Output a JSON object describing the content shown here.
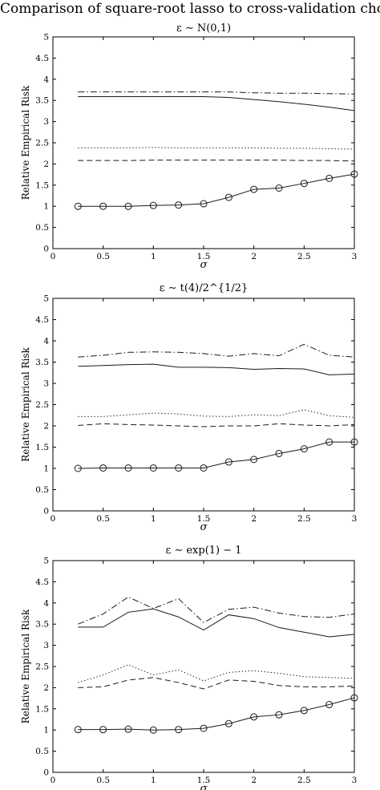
{
  "figure_title": "Comparison of square-root lasso to cross-validation choice",
  "colors": {
    "line": "#1a1a1a",
    "axis": "#000000",
    "background": "#ffffff"
  },
  "chart_data": [
    {
      "type": "line",
      "title": "ε ∼ N(0,1)",
      "xlabel": "σ",
      "ylabel": "Relative Empirical Risk",
      "xlim": [
        0,
        3
      ],
      "ylim": [
        0,
        5
      ],
      "xticks": [
        "0",
        "0.5",
        "1",
        "1.5",
        "2",
        "2.5",
        "3"
      ],
      "yticks": [
        "0",
        "0.5",
        "1",
        "1.5",
        "2",
        "2.5",
        "3",
        "3.5",
        "4",
        "4.5",
        "5"
      ],
      "x": [
        0.25,
        0.5,
        0.75,
        1,
        1.25,
        1.5,
        1.75,
        2,
        2.25,
        2.5,
        2.75,
        3
      ],
      "series": [
        {
          "style": "dashdot",
          "marker": "none",
          "values": [
            3.7,
            3.7,
            3.7,
            3.7,
            3.7,
            3.7,
            3.7,
            3.68,
            3.67,
            3.67,
            3.66,
            3.65
          ]
        },
        {
          "style": "solid",
          "marker": "none",
          "values": [
            3.59,
            3.59,
            3.59,
            3.59,
            3.59,
            3.59,
            3.57,
            3.52,
            3.47,
            3.41,
            3.34,
            3.26
          ]
        },
        {
          "style": "dotted",
          "marker": "none",
          "values": [
            2.38,
            2.38,
            2.38,
            2.39,
            2.38,
            2.38,
            2.38,
            2.38,
            2.37,
            2.37,
            2.36,
            2.35
          ]
        },
        {
          "style": "dashed",
          "marker": "none",
          "values": [
            2.08,
            2.08,
            2.08,
            2.09,
            2.09,
            2.09,
            2.09,
            2.09,
            2.09,
            2.08,
            2.08,
            2.07
          ]
        },
        {
          "style": "solid",
          "marker": "circle",
          "values": [
            1.0,
            1.0,
            1.0,
            1.02,
            1.03,
            1.06,
            1.21,
            1.4,
            1.43,
            1.54,
            1.66,
            1.76
          ]
        }
      ]
    },
    {
      "type": "line",
      "title": "ε ∼ t(4)/2^{1/2}",
      "xlabel": "σ",
      "ylabel": "Relative Empirical Risk",
      "xlim": [
        0,
        3
      ],
      "ylim": [
        0,
        5
      ],
      "xticks": [
        "0",
        "0.5",
        "1",
        "1.5",
        "2",
        "2.5",
        "3"
      ],
      "yticks": [
        "0",
        "0.5",
        "1",
        "1.5",
        "2",
        "2.5",
        "3",
        "3.5",
        "4",
        "4.5",
        "5"
      ],
      "x": [
        0.25,
        0.5,
        0.75,
        1,
        1.25,
        1.5,
        1.75,
        2,
        2.25,
        2.5,
        2.75,
        3
      ],
      "series": [
        {
          "style": "dashdot",
          "marker": "none",
          "values": [
            3.62,
            3.66,
            3.73,
            3.74,
            3.73,
            3.7,
            3.64,
            3.7,
            3.65,
            3.92,
            3.66,
            3.62
          ]
        },
        {
          "style": "solid",
          "marker": "none",
          "values": [
            3.4,
            3.42,
            3.44,
            3.45,
            3.38,
            3.38,
            3.37,
            3.33,
            3.35,
            3.34,
            3.2,
            3.22
          ]
        },
        {
          "style": "dotted",
          "marker": "none",
          "values": [
            2.22,
            2.22,
            2.26,
            2.3,
            2.28,
            2.23,
            2.22,
            2.26,
            2.24,
            2.38,
            2.24,
            2.2
          ]
        },
        {
          "style": "dashed",
          "marker": "none",
          "values": [
            2.01,
            2.05,
            2.03,
            2.02,
            2.0,
            1.98,
            2.0,
            2.0,
            2.05,
            2.02,
            2.0,
            2.03
          ]
        },
        {
          "style": "solid",
          "marker": "circle",
          "values": [
            1.0,
            1.01,
            1.01,
            1.01,
            1.01,
            1.01,
            1.15,
            1.21,
            1.35,
            1.46,
            1.62,
            1.62
          ]
        }
      ]
    },
    {
      "type": "line",
      "title": "ε ∼ exp(1) − 1",
      "xlabel": "σ",
      "ylabel": "Relative Empirical Risk",
      "xlim": [
        0,
        3
      ],
      "ylim": [
        0,
        5
      ],
      "xticks": [
        "0",
        "0.5",
        "1",
        "1.5",
        "2",
        "2.5",
        "3"
      ],
      "yticks": [
        "0",
        "0.5",
        "1",
        "1.5",
        "2",
        "2.5",
        "3",
        "3.5",
        "4",
        "4.5",
        "5"
      ],
      "x": [
        0.25,
        0.5,
        0.75,
        1,
        1.25,
        1.5,
        1.75,
        2,
        2.25,
        2.5,
        2.75,
        3
      ],
      "series": [
        {
          "style": "dashdot",
          "marker": "none",
          "values": [
            3.5,
            3.74,
            4.14,
            3.87,
            4.1,
            3.54,
            3.85,
            3.9,
            3.76,
            3.68,
            3.66,
            3.74
          ]
        },
        {
          "style": "solid",
          "marker": "none",
          "values": [
            3.43,
            3.43,
            3.78,
            3.86,
            3.67,
            3.36,
            3.72,
            3.63,
            3.42,
            3.31,
            3.2,
            3.26
          ]
        },
        {
          "style": "dotted",
          "marker": "none",
          "values": [
            2.12,
            2.3,
            2.54,
            2.3,
            2.42,
            2.16,
            2.36,
            2.4,
            2.34,
            2.26,
            2.24,
            2.22
          ]
        },
        {
          "style": "dashed",
          "marker": "none",
          "values": [
            2.0,
            2.02,
            2.18,
            2.24,
            2.12,
            1.97,
            2.18,
            2.15,
            2.05,
            2.02,
            2.02,
            2.04
          ]
        },
        {
          "style": "solid",
          "marker": "circle",
          "values": [
            1.01,
            1.01,
            1.02,
            1.0,
            1.01,
            1.04,
            1.15,
            1.31,
            1.36,
            1.46,
            1.6,
            1.76
          ]
        }
      ]
    }
  ]
}
